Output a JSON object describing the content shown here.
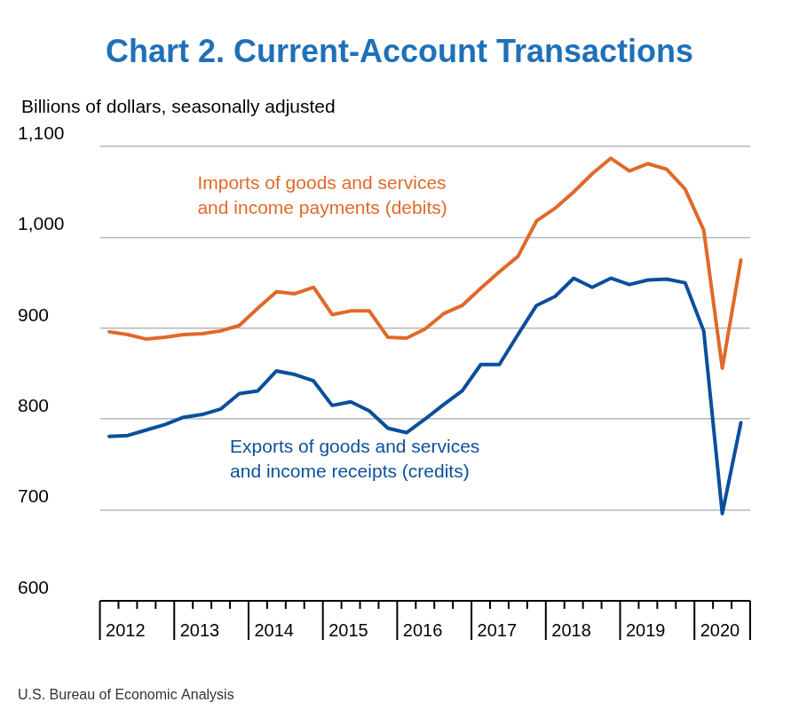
{
  "chart_data": {
    "type": "line",
    "title": "Chart 2. Current-Account Transactions",
    "subtitle": "Billions of dollars, seasonally adjusted",
    "annotations": [
      "U.S. Bureau of Economic Analysis"
    ],
    "categories": [
      "2012",
      null,
      null,
      null,
      "2013",
      null,
      null,
      null,
      "2014",
      null,
      null,
      null,
      "2015",
      null,
      null,
      null,
      "2016",
      null,
      null,
      null,
      "2017",
      null,
      null,
      null,
      "2018",
      null,
      null,
      null,
      "2019",
      null,
      null,
      null,
      "2020",
      null,
      null
    ],
    "series": [
      {
        "name": "Imports of goods and services and income payments (debits)",
        "color": "#e0692a",
        "values": [
          896,
          893,
          888,
          890,
          893,
          894,
          897,
          903,
          922,
          940,
          938,
          945,
          915,
          919,
          919,
          890,
          889,
          899,
          916,
          925,
          944,
          962,
          979,
          1018,
          1032,
          1050,
          1070,
          1087,
          1073,
          1081,
          1075,
          1053,
          1008,
          856,
          975
        ]
      },
      {
        "name": "Exports of goods and services and income receipts (credits)",
        "color": "#0b4f9c",
        "values": [
          781,
          782,
          788,
          794,
          802,
          805,
          811,
          828,
          831,
          853,
          849,
          842,
          815,
          819,
          809,
          790,
          785,
          800,
          816,
          831,
          860,
          860,
          893,
          925,
          935,
          955,
          945,
          955,
          948,
          953,
          954,
          950,
          897,
          696,
          796
        ]
      }
    ],
    "ylim": [
      600,
      1100
    ],
    "yticks": [
      600,
      700,
      800,
      900,
      {
        "value": 1000,
        "label": "1,000"
      },
      {
        "value": 1100,
        "label": "1,100"
      }
    ],
    "grid": true
  }
}
